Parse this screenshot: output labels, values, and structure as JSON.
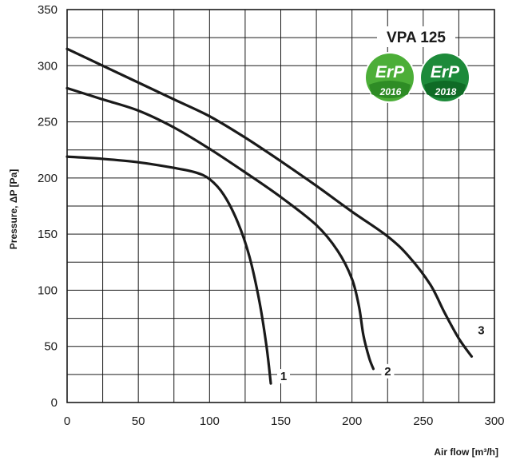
{
  "chart_data": {
    "type": "line",
    "title": "VPA 125",
    "xlabel": "Air flow [m³/h]",
    "ylabel": "Pressure, ΔP [Pa]",
    "xlim": [
      0,
      300
    ],
    "ylim": [
      0,
      350
    ],
    "x_ticks": [
      "0",
      "50",
      "100",
      "150",
      "200",
      "250",
      "300"
    ],
    "y_ticks": [
      "0",
      "50",
      "100",
      "150",
      "200",
      "250",
      "300",
      "350"
    ],
    "grid": true,
    "series": [
      {
        "name": "1",
        "points": [
          [
            0,
            219
          ],
          [
            25,
            217
          ],
          [
            50,
            214
          ],
          [
            75,
            209
          ],
          [
            90,
            205
          ],
          [
            100,
            199
          ],
          [
            110,
            185
          ],
          [
            120,
            160
          ],
          [
            128,
            130
          ],
          [
            135,
            90
          ],
          [
            140,
            50
          ],
          [
            143,
            17
          ]
        ]
      },
      {
        "name": "2",
        "points": [
          [
            0,
            280
          ],
          [
            25,
            270
          ],
          [
            50,
            260
          ],
          [
            75,
            245
          ],
          [
            100,
            226
          ],
          [
            125,
            205
          ],
          [
            150,
            183
          ],
          [
            175,
            158
          ],
          [
            190,
            135
          ],
          [
            200,
            110
          ],
          [
            205,
            85
          ],
          [
            208,
            60
          ],
          [
            212,
            40
          ],
          [
            215,
            30
          ]
        ]
      },
      {
        "name": "3",
        "points": [
          [
            0,
            315
          ],
          [
            25,
            300
          ],
          [
            50,
            285
          ],
          [
            75,
            270
          ],
          [
            100,
            255
          ],
          [
            125,
            236
          ],
          [
            150,
            215
          ],
          [
            175,
            193
          ],
          [
            200,
            170
          ],
          [
            225,
            148
          ],
          [
            240,
            130
          ],
          [
            255,
            105
          ],
          [
            265,
            80
          ],
          [
            275,
            57
          ],
          [
            284,
            41
          ]
        ]
      }
    ],
    "labels": {
      "erp1": "ErP",
      "erp1_year": "2016",
      "erp2": "ErP",
      "erp2_year": "2018"
    },
    "colors": {
      "line": "#1a1a1a",
      "grid": "#1a1a1a",
      "erp2016": "#4cae38",
      "erp2018": "#1d8a3a"
    }
  }
}
